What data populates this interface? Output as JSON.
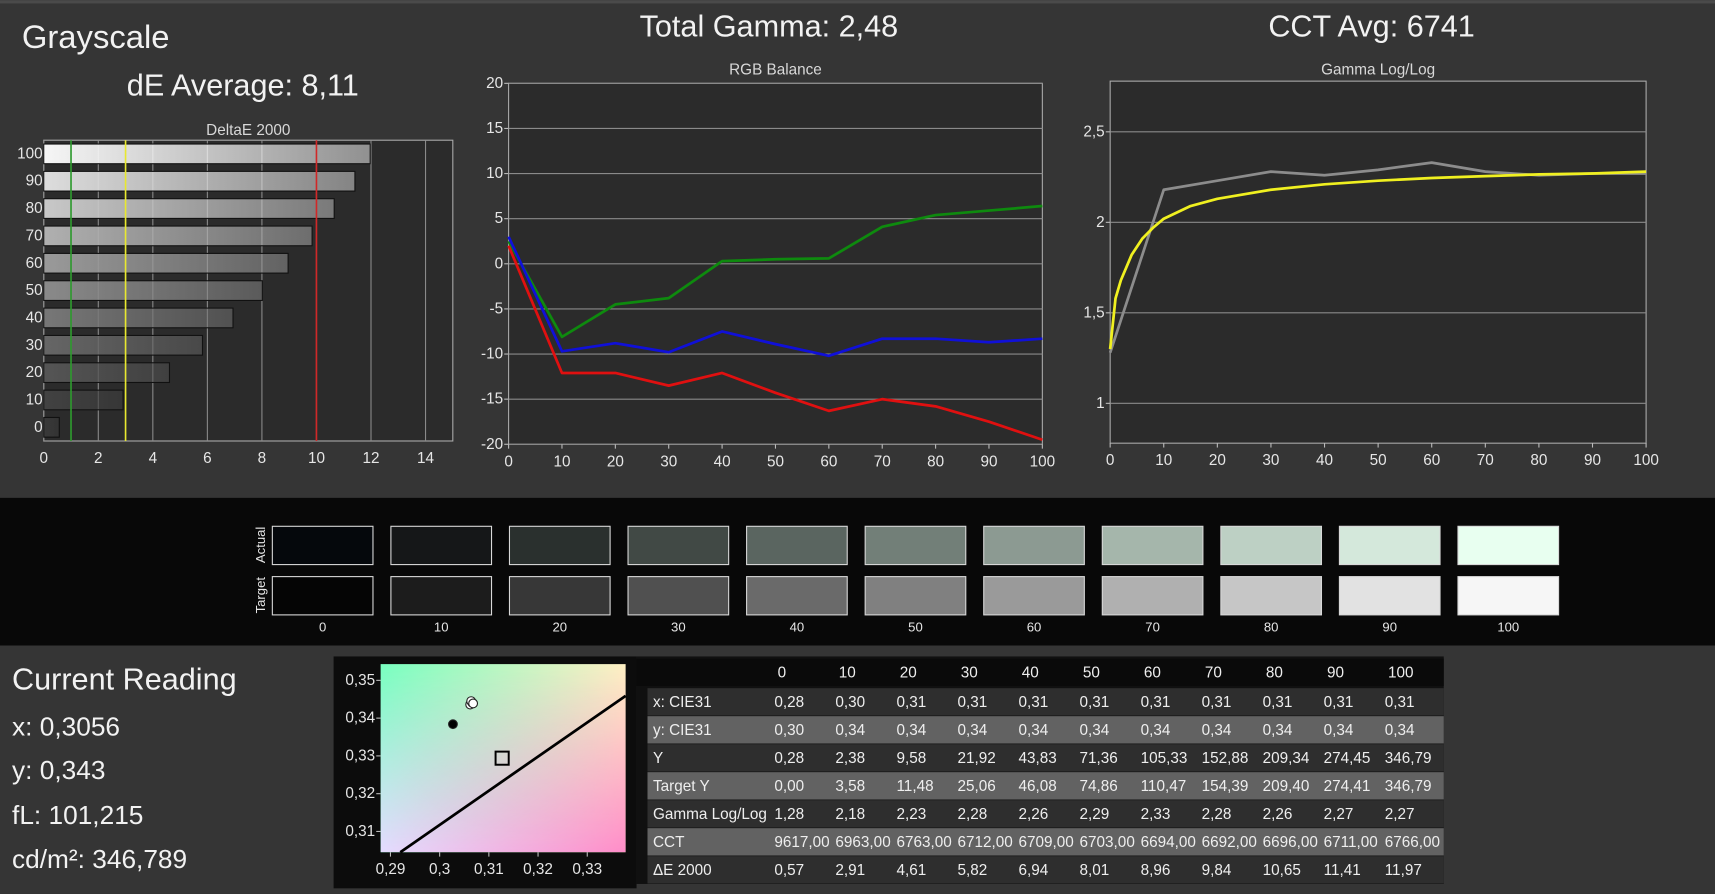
{
  "header": {
    "title": "Grayscale",
    "de_average": "dE Average: 8,11",
    "total_gamma": "Total Gamma: 2,48",
    "cct_avg": "CCT Avg: 6741"
  },
  "chart_data": [
    {
      "type": "bar",
      "orientation": "horizontal",
      "title": "DeltaE 2000",
      "categories": [
        "0",
        "10",
        "20",
        "30",
        "40",
        "50",
        "60",
        "70",
        "80",
        "90",
        "100"
      ],
      "values": [
        0.57,
        2.91,
        4.61,
        5.82,
        6.94,
        8.01,
        8.96,
        9.84,
        10.65,
        11.41,
        11.97
      ],
      "bar_colors": [
        "#3a3a3a",
        "#424242",
        "#555555",
        "#666666",
        "#777777",
        "#8a8a8a",
        "#9a9a9a",
        "#b0b0b0",
        "#c8c8c8",
        "#dddddd",
        "#f6f6f6"
      ],
      "xlim": [
        0,
        15
      ],
      "xticks": [
        0,
        2,
        4,
        6,
        8,
        10,
        12,
        14
      ],
      "grid": true,
      "reference_lines": [
        {
          "value": 1,
          "color": "#2e9a2e"
        },
        {
          "value": 3,
          "color": "#e8e830"
        },
        {
          "value": 10,
          "color": "#d02828"
        }
      ]
    },
    {
      "type": "line",
      "title": "RGB Balance",
      "x": [
        0,
        10,
        20,
        30,
        40,
        50,
        60,
        70,
        80,
        90,
        100
      ],
      "series": [
        {
          "color": "#0e8a0e",
          "values": [
            2.5,
            -8.1,
            -4.5,
            -3.8,
            0.3,
            0.5,
            0.6,
            4.1,
            5.4,
            5.9,
            6.4
          ]
        },
        {
          "color": "#1010d8",
          "values": [
            3,
            -9.7,
            -8.8,
            -9.8,
            -7.5,
            -8.9,
            -10.2,
            -8.3,
            -8.3,
            -8.7,
            -8.3
          ]
        },
        {
          "color": "#e01010",
          "values": [
            2,
            -12.1,
            -12.1,
            -13.5,
            -12.1,
            -14.3,
            -16.3,
            -15,
            -15.8,
            -17.5,
            -19.5
          ]
        }
      ],
      "xlim": [
        0,
        100
      ],
      "xticks": [
        0,
        10,
        20,
        30,
        40,
        50,
        60,
        70,
        80,
        90,
        100
      ],
      "ylim": [
        -20,
        20
      ],
      "yticks": [
        -20,
        -15,
        -10,
        -5,
        0,
        5,
        10,
        15,
        20
      ],
      "grid": true
    },
    {
      "type": "line",
      "title": "Gamma Log/Log",
      "x": [
        0,
        10,
        20,
        30,
        40,
        50,
        60,
        70,
        80,
        90,
        100
      ],
      "series": [
        {
          "color": "#8c8c8c",
          "values": [
            1.28,
            2.18,
            2.23,
            2.28,
            2.26,
            2.29,
            2.33,
            2.28,
            2.26,
            2.27,
            2.27
          ]
        },
        {
          "color": "#f0f020",
          "x": [
            0,
            1,
            2,
            4,
            6,
            8,
            10,
            15,
            20,
            30,
            40,
            50,
            60,
            70,
            80,
            90,
            100
          ],
          "values": [
            1.3,
            1.58,
            1.68,
            1.82,
            1.91,
            1.97,
            2.02,
            2.09,
            2.13,
            2.18,
            2.21,
            2.23,
            2.245,
            2.255,
            2.265,
            2.27,
            2.28
          ]
        }
      ],
      "xlim": [
        0,
        100
      ],
      "xticks": [
        0,
        10,
        20,
        30,
        40,
        50,
        60,
        70,
        80,
        90,
        100
      ],
      "ylim": [
        0.78,
        2.78
      ],
      "yticks": [
        1,
        {
          "value": 1.5,
          "label": "1,5"
        },
        2,
        {
          "value": 2.5,
          "label": "2,5"
        }
      ],
      "grid": true
    },
    {
      "type": "scatter",
      "series": [
        {
          "marker": "line",
          "color": "#000000",
          "x": [
            0.292,
            0.313,
            0.3378
          ],
          "values": [
            0.3045,
            0.3235,
            0.3459
          ]
        },
        {
          "marker": "circle",
          "color": "#ffffff",
          "x": [
            0.3062,
            0.3066,
            0.3064,
            0.3068
          ],
          "values": [
            0.3436,
            0.3441,
            0.3445,
            0.3439
          ]
        },
        {
          "marker": "circle",
          "color": "#000000",
          "x": [
            0.3027
          ],
          "values": [
            0.3384
          ]
        },
        {
          "marker": "square",
          "color": "#000000",
          "x": [
            0.3127
          ],
          "values": [
            0.3294
          ]
        }
      ],
      "xlim": [
        0.288,
        0.3378
      ],
      "xticks": [
        {
          "value": 0.29,
          "label": "0,29"
        },
        {
          "value": 0.3,
          "label": "0,3"
        },
        {
          "value": 0.31,
          "label": "0,31"
        },
        {
          "value": 0.32,
          "label": "0,32"
        },
        {
          "value": 0.33,
          "label": "0,33"
        }
      ],
      "ylim": [
        0.3045,
        0.3543
      ],
      "yticks": [
        {
          "value": 0.31,
          "label": "0,31"
        },
        {
          "value": 0.32,
          "label": "0,32"
        },
        {
          "value": 0.33,
          "label": "0,33"
        },
        {
          "value": 0.34,
          "label": "0,34"
        },
        {
          "value": 0.35,
          "label": "0,35"
        }
      ]
    }
  ],
  "swatches": {
    "labels": [
      "0",
      "10",
      "20",
      "30",
      "40",
      "50",
      "60",
      "70",
      "80",
      "90",
      "100"
    ],
    "rows": [
      {
        "label": "Actual",
        "colors": [
          "#05080c",
          "#151718",
          "#2a302e",
          "#414945",
          "#5a6560",
          "#727f78",
          "#8c9a92",
          "#a5b6ab",
          "#bdd0c4",
          "#d4e8db",
          "#e8fff0"
        ]
      },
      {
        "label": "Target",
        "colors": [
          "#050505",
          "#1c1c1c",
          "#373737",
          "#505050",
          "#6a6a6a",
          "#808080",
          "#9a9a9a",
          "#b0b0b0",
          "#c6c6c6",
          "#e2e2e2",
          "#f6f6f6"
        ]
      }
    ]
  },
  "current_reading": {
    "title": "Current Reading",
    "x": "x: 0,3056",
    "y": "y: 0,343",
    "fl": "fL: 101,215",
    "cd": "cd/m²: 346,789"
  },
  "table": {
    "columns": [
      "0",
      "10",
      "20",
      "30",
      "40",
      "50",
      "60",
      "70",
      "80",
      "90",
      "100"
    ],
    "rows": [
      [
        "x: CIE31",
        "0,28",
        "0,30",
        "0,31",
        "0,31",
        "0,31",
        "0,31",
        "0,31",
        "0,31",
        "0,31",
        "0,31",
        "0,31"
      ],
      [
        "y: CIE31",
        "0,30",
        "0,34",
        "0,34",
        "0,34",
        "0,34",
        "0,34",
        "0,34",
        "0,34",
        "0,34",
        "0,34",
        "0,34"
      ],
      [
        "Y",
        "0,28",
        "2,38",
        "9,58",
        "21,92",
        "43,83",
        "71,36",
        "105,33",
        "152,88",
        "209,34",
        "274,45",
        "346,79"
      ],
      [
        "Target Y",
        "0,00",
        "3,58",
        "11,48",
        "25,06",
        "46,08",
        "74,86",
        "110,47",
        "154,39",
        "209,40",
        "274,41",
        "346,79"
      ],
      [
        "Gamma Log/Log",
        "1,28",
        "2,18",
        "2,23",
        "2,28",
        "2,26",
        "2,29",
        "2,33",
        "2,28",
        "2,26",
        "2,27",
        "2,27"
      ],
      [
        "CCT",
        "9617,00",
        "6963,00",
        "6763,00",
        "6712,00",
        "6709,00",
        "6703,00",
        "6694,00",
        "6692,00",
        "6696,00",
        "6711,00",
        "6766,00"
      ],
      [
        "ΔE 2000",
        "0,57",
        "2,91",
        "4,61",
        "5,82",
        "6,94",
        "8,01",
        "8,96",
        "9,84",
        "10,65",
        "11,41",
        "11,97"
      ]
    ]
  }
}
